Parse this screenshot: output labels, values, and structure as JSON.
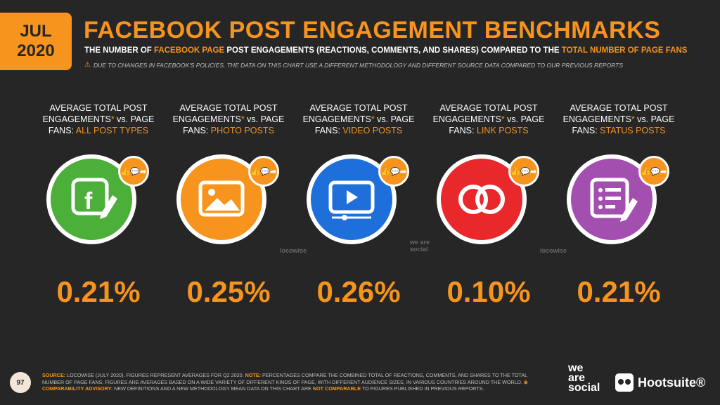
{
  "date": {
    "month": "JUL",
    "year": "2020"
  },
  "title": "FACEBOOK POST ENGAGEMENT BENCHMARKS",
  "subtitle": {
    "part1": "THE NUMBER OF ",
    "hl1": "FACEBOOK PAGE",
    "part2": " POST ENGAGEMENTS (REACTIONS, COMMENTS, AND SHARES) COMPARED TO THE ",
    "hl2": "TOTAL NUMBER OF PAGE FANS"
  },
  "notice": "DUE TO CHANGES IN FACEBOOK'S POLICIES, THE DATA ON THIS CHART USE A DIFFERENT METHODOLOGY AND DIFFERENT SOURCE DATA COMPARED TO OUR PREVIOUS REPORTS",
  "columns": [
    {
      "line1": "AVERAGE TOTAL POST",
      "line2a": "ENGAGEMENTS",
      "line2b": " vs. PAGE",
      "line3a": "FANS: ",
      "type": "ALL POST TYPES",
      "value": "0.21%",
      "color": "#4caf3a",
      "icon": "facebook-edit-icon"
    },
    {
      "line1": "AVERAGE TOTAL POST",
      "line2a": "ENGAGEMENTS",
      "line2b": " vs. PAGE",
      "line3a": "FANS: ",
      "type": "PHOTO POSTS",
      "value": "0.25%",
      "color": "#f7941d",
      "icon": "photo-icon"
    },
    {
      "line1": "AVERAGE TOTAL POST",
      "line2a": "ENGAGEMENTS",
      "line2b": " vs. PAGE",
      "line3a": "FANS: ",
      "type": "VIDEO POSTS",
      "value": "0.26%",
      "color": "#1e6fd9",
      "icon": "video-icon"
    },
    {
      "line1": "AVERAGE TOTAL POST",
      "line2a": "ENGAGEMENTS",
      "line2b": " vs. PAGE",
      "line3a": "FANS: ",
      "type": "LINK POSTS",
      "value": "0.10%",
      "color": "#e8282b",
      "icon": "link-icon"
    },
    {
      "line1": "AVERAGE TOTAL POST",
      "line2a": "ENGAGEMENTS",
      "line2b": " vs. PAGE",
      "line3a": "FANS: ",
      "type": "STATUS POSTS",
      "value": "0.21%",
      "color": "#a34fb0",
      "icon": "status-edit-icon"
    }
  ],
  "badge_text": "👍💬➦",
  "watermarks": {
    "locowise": "locowise",
    "wearesocial": "we are social"
  },
  "footer": {
    "page": "97",
    "source_label": "SOURCE:",
    "source": " LOCOWISE (JULY 2020). FIGURES REPRESENT AVERAGES FOR Q2 2020. ",
    "note_label": "NOTE:",
    "note": " PERCENTAGES COMPARE THE COMBINED TOTAL OF REACTIONS, COMMENTS, AND SHARES TO THE TOTAL NUMBER OF PAGE FANS. FIGURES ARE AVERAGES BASED ON A WIDE VARIETY OF DIFFERENT KINDS OF PAGE, WITH DIFFERENT AUDIENCE SIZES, IN VARIOUS COUNTRIES AROUND THE WORLD. ",
    "advisory_label": "⊕ COMPARABILITY ADVISORY:",
    "advisory": " NEW DEFINITIONS AND A NEW METHODOLOGY MEAN DATA ON THIS CHART ARE ",
    "advisory_hl": "NOT COMPARABLE",
    "advisory_end": " TO FIGURES PUBLISHED IN PREVIOUS REPORTS."
  },
  "brands": {
    "wearesocial": [
      "we",
      "are",
      "social"
    ],
    "hootsuite": "Hootsuite®"
  }
}
